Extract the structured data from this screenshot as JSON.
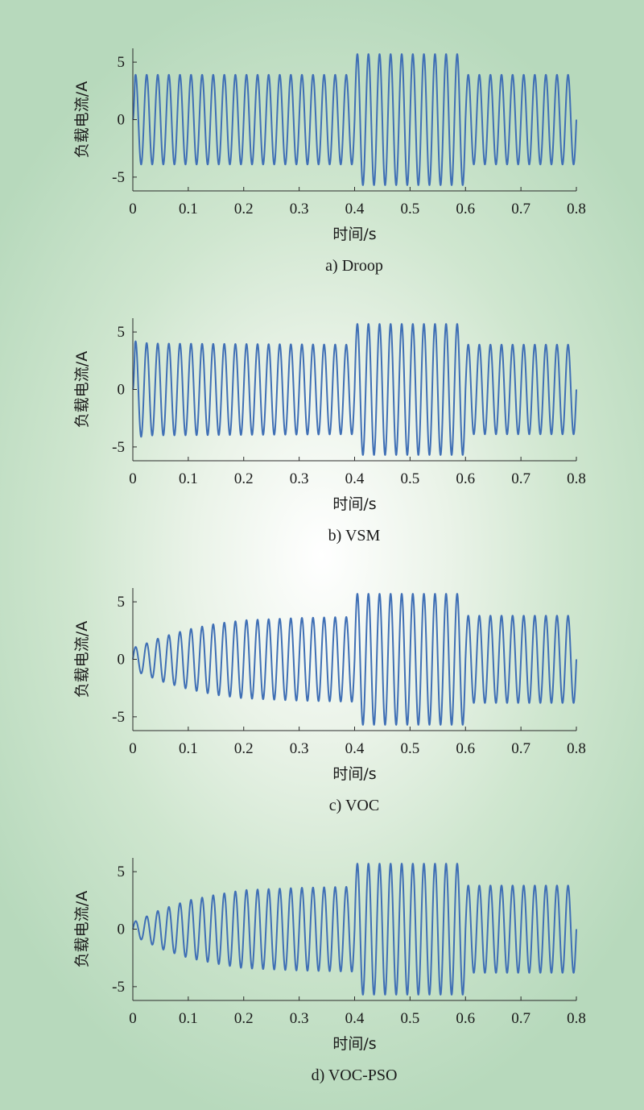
{
  "chart_data": [
    {
      "id": "a",
      "type": "line",
      "caption": "a) Droop",
      "xlabel": "时间/s",
      "ylabel": "负载电流/A",
      "xlim": [
        0,
        0.8
      ],
      "ylim": [
        -6.2,
        6.2
      ],
      "xticks": [
        0,
        0.1,
        0.2,
        0.3,
        0.4,
        0.5,
        0.6,
        0.7,
        0.8
      ],
      "xtick_labels": [
        "0",
        "0.1",
        "0.2",
        "0.3",
        "0.4",
        "0.5",
        "0.6",
        "0.7",
        "0.8"
      ],
      "yticks": [
        -5,
        0,
        5
      ],
      "ytick_labels": [
        "-5",
        "0",
        "5"
      ],
      "grid": false,
      "series": [
        {
          "color": "#3f6fb5",
          "frequency_hz": 50,
          "phase_deg": 0,
          "envelope": [
            [
              0,
              0
            ],
            [
              0.004,
              3.9
            ],
            [
              0.4,
              3.9
            ],
            [
              0.4,
              5.7
            ],
            [
              0.6,
              5.7
            ],
            [
              0.6,
              3.9
            ],
            [
              0.8,
              3.9
            ]
          ]
        }
      ]
    },
    {
      "id": "b",
      "type": "line",
      "caption": "b) VSM",
      "xlabel": "时间/s",
      "ylabel": "负载电流/A",
      "xlim": [
        0,
        0.8
      ],
      "ylim": [
        -6.2,
        6.2
      ],
      "xticks": [
        0,
        0.1,
        0.2,
        0.3,
        0.4,
        0.5,
        0.6,
        0.7,
        0.8
      ],
      "xtick_labels": [
        "0",
        "0.1",
        "0.2",
        "0.3",
        "0.4",
        "0.5",
        "0.6",
        "0.7",
        "0.8"
      ],
      "yticks": [
        -5,
        0,
        5
      ],
      "ytick_labels": [
        "-5",
        "0",
        "5"
      ],
      "grid": false,
      "series": [
        {
          "color": "#3f6fb5",
          "frequency_hz": 50,
          "phase_deg": 0,
          "envelope": [
            [
              0,
              0
            ],
            [
              0.004,
              4.2
            ],
            [
              0.03,
              4.0
            ],
            [
              0.4,
              3.9
            ],
            [
              0.4,
              5.7
            ],
            [
              0.6,
              5.7
            ],
            [
              0.6,
              3.9
            ],
            [
              0.8,
              3.9
            ]
          ]
        }
      ]
    },
    {
      "id": "c",
      "type": "line",
      "caption": "c) VOC",
      "xlabel": "时间/s",
      "ylabel": "负载电流/A",
      "xlim": [
        0,
        0.8
      ],
      "ylim": [
        -6.2,
        6.2
      ],
      "xticks": [
        0,
        0.1,
        0.2,
        0.3,
        0.4,
        0.5,
        0.6,
        0.7,
        0.8
      ],
      "xtick_labels": [
        "0",
        "0.1",
        "0.2",
        "0.3",
        "0.4",
        "0.5",
        "0.6",
        "0.7",
        "0.8"
      ],
      "yticks": [
        -5,
        0,
        5
      ],
      "ytick_labels": [
        "-5",
        "0",
        "5"
      ],
      "grid": false,
      "series": [
        {
          "color": "#3f6fb5",
          "frequency_hz": 50,
          "phase_deg": 0,
          "envelope": [
            [
              0,
              1.0
            ],
            [
              0.02,
              1.3
            ],
            [
              0.05,
              1.9
            ],
            [
              0.1,
              2.6
            ],
            [
              0.15,
              3.1
            ],
            [
              0.2,
              3.4
            ],
            [
              0.3,
              3.6
            ],
            [
              0.4,
              3.7
            ],
            [
              0.4,
              5.7
            ],
            [
              0.6,
              5.7
            ],
            [
              0.6,
              3.8
            ],
            [
              0.8,
              3.8
            ]
          ]
        }
      ]
    },
    {
      "id": "d",
      "type": "line",
      "caption": "d) VOC-PSO",
      "xlabel": "时间/s",
      "ylabel": "负载电流/A",
      "xlim": [
        0,
        0.8
      ],
      "ylim": [
        -6.2,
        6.2
      ],
      "xticks": [
        0,
        0.1,
        0.2,
        0.3,
        0.4,
        0.5,
        0.6,
        0.7,
        0.8
      ],
      "xtick_labels": [
        "0",
        "0.1",
        "0.2",
        "0.3",
        "0.4",
        "0.5",
        "0.6",
        "0.7",
        "0.8"
      ],
      "yticks": [
        -5,
        0,
        5
      ],
      "ytick_labels": [
        "-5",
        "0",
        "5"
      ],
      "grid": false,
      "series": [
        {
          "color": "#3f6fb5",
          "frequency_hz": 50,
          "phase_deg": 0,
          "envelope": [
            [
              0,
              0.6
            ],
            [
              0.02,
              1.0
            ],
            [
              0.05,
              1.7
            ],
            [
              0.1,
              2.5
            ],
            [
              0.15,
              3.0
            ],
            [
              0.2,
              3.4
            ],
            [
              0.3,
              3.6
            ],
            [
              0.4,
              3.7
            ],
            [
              0.4,
              5.7
            ],
            [
              0.6,
              5.7
            ],
            [
              0.6,
              3.8
            ],
            [
              0.8,
              3.8
            ]
          ]
        }
      ]
    }
  ]
}
